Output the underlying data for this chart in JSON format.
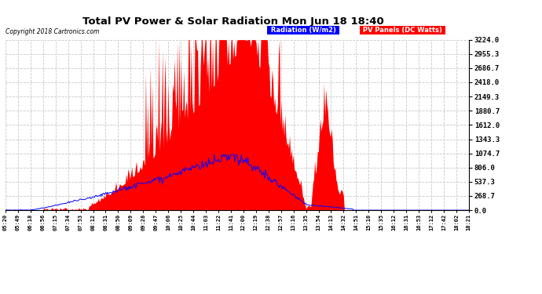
{
  "title": "Total PV Power & Solar Radiation Mon Jun 18 18:40",
  "copyright": "Copyright 2018 Cartronics.com",
  "y_max": 3224.0,
  "y_min": 0.0,
  "y_ticks": [
    0.0,
    268.7,
    537.3,
    806.0,
    1074.7,
    1343.3,
    1612.0,
    1880.7,
    2149.3,
    2418.0,
    2686.7,
    2955.3,
    3224.0
  ],
  "bg_color": "#ffffff",
  "plot_bg_color": "#ffffff",
  "grid_color": "#c8c8c8",
  "red_color": "#ff0000",
  "blue_color": "#0000ff",
  "title_color": "#000000",
  "legend_radiation_bg": "#0000ff",
  "legend_pv_bg": "#ff0000",
  "x_labels": [
    "05:20",
    "05:49",
    "06:18",
    "06:56",
    "07:15",
    "07:34",
    "07:53",
    "08:12",
    "08:31",
    "08:50",
    "09:09",
    "09:28",
    "09:47",
    "10:06",
    "10:25",
    "10:44",
    "11:03",
    "11:22",
    "11:41",
    "12:00",
    "12:19",
    "12:38",
    "12:57",
    "13:16",
    "13:35",
    "13:54",
    "14:13",
    "14:32",
    "14:51",
    "15:10",
    "15:35",
    "16:12",
    "16:31",
    "16:53",
    "17:12",
    "17:42",
    "18:02",
    "18:21"
  ],
  "n_points": 500,
  "pv_scale": 3224.0,
  "radiation_peak": 1050.0
}
